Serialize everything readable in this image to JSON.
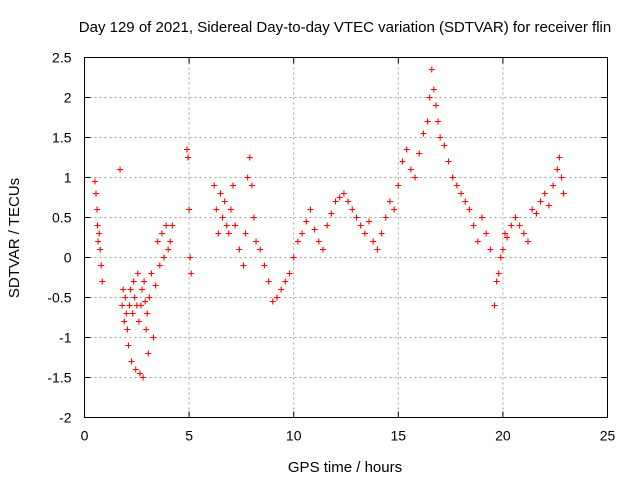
{
  "chart_data": {
    "type": "scatter",
    "title": "Day 129 of 2021, Sidereal Day-to-day VTEC variation (SDTVAR) for receiver flin",
    "xlabel": "GPS time / hours",
    "ylabel": "SDTVAR / TECUs",
    "xlim": [
      0,
      25
    ],
    "ylim": [
      -2,
      2.5
    ],
    "xticks": [
      0,
      5,
      10,
      15,
      20,
      25
    ],
    "yticks": [
      -2,
      -1.5,
      -1,
      -0.5,
      0,
      0.5,
      1,
      1.5,
      2,
      2.5
    ],
    "grid": true,
    "marker": "+",
    "color": "#ff0000",
    "series": [
      {
        "name": "SDTVAR",
        "x": [
          0.5,
          0.55,
          0.6,
          0.62,
          0.65,
          0.7,
          0.75,
          0.8,
          0.85,
          1.7,
          1.8,
          1.85,
          1.9,
          1.95,
          2.0,
          2.05,
          2.1,
          2.15,
          2.2,
          2.25,
          2.3,
          2.35,
          2.4,
          2.45,
          2.5,
          2.55,
          2.6,
          2.65,
          2.7,
          2.75,
          2.8,
          2.85,
          2.9,
          2.95,
          3.0,
          3.05,
          3.1,
          3.2,
          3.3,
          3.4,
          3.5,
          3.6,
          3.7,
          3.8,
          3.9,
          4.0,
          4.1,
          4.2,
          4.9,
          4.95,
          5.0,
          5.05,
          5.1,
          6.2,
          6.3,
          6.4,
          6.5,
          6.6,
          6.7,
          6.8,
          6.9,
          7.0,
          7.1,
          7.2,
          7.4,
          7.6,
          7.7,
          7.8,
          7.9,
          8.0,
          8.1,
          8.2,
          8.4,
          8.6,
          8.8,
          9.0,
          9.2,
          9.4,
          9.6,
          9.8,
          10.0,
          10.2,
          10.4,
          10.6,
          10.8,
          11.0,
          11.2,
          11.4,
          11.6,
          11.8,
          12.0,
          12.2,
          12.4,
          12.6,
          12.8,
          13.0,
          13.2,
          13.4,
          13.6,
          13.8,
          14.0,
          14.2,
          14.4,
          14.6,
          14.8,
          15.0,
          15.2,
          15.4,
          15.6,
          15.8,
          16.0,
          16.2,
          16.4,
          16.5,
          16.6,
          16.7,
          16.8,
          16.9,
          17.0,
          17.2,
          17.4,
          17.6,
          17.8,
          18.0,
          18.2,
          18.4,
          18.6,
          18.8,
          19.0,
          19.2,
          19.4,
          19.6,
          19.7,
          19.8,
          19.9,
          20.0,
          20.1,
          20.2,
          20.4,
          20.6,
          20.8,
          21.0,
          21.2,
          21.4,
          21.6,
          21.8,
          22.0,
          22.2,
          22.4,
          22.6,
          22.7,
          22.8,
          22.9
        ],
        "y": [
          0.95,
          0.8,
          0.6,
          0.4,
          0.2,
          0.3,
          0.1,
          -0.1,
          -0.3,
          1.1,
          -0.6,
          -0.4,
          -0.8,
          -0.5,
          -0.7,
          -0.9,
          -1.1,
          -0.6,
          -0.4,
          -1.3,
          -0.7,
          -0.3,
          -0.5,
          -1.4,
          -0.6,
          -0.2,
          -0.8,
          -1.45,
          -0.6,
          -0.4,
          -1.5,
          -0.3,
          -0.55,
          -0.9,
          -0.7,
          -1.2,
          -0.5,
          -0.2,
          -1.0,
          -0.35,
          0.2,
          -0.1,
          0.3,
          0.0,
          0.4,
          0.1,
          0.2,
          0.4,
          1.35,
          1.25,
          0.6,
          0.0,
          -0.2,
          0.9,
          0.6,
          0.3,
          0.8,
          0.5,
          0.7,
          0.4,
          0.3,
          0.6,
          0.9,
          0.4,
          0.1,
          -0.1,
          0.3,
          1.0,
          1.25,
          0.9,
          0.5,
          0.2,
          0.1,
          -0.1,
          -0.3,
          -0.55,
          -0.5,
          -0.4,
          -0.3,
          -0.2,
          0.0,
          0.2,
          0.3,
          0.45,
          0.6,
          0.35,
          0.2,
          0.1,
          0.4,
          0.55,
          0.7,
          0.75,
          0.8,
          0.7,
          0.6,
          0.5,
          0.4,
          0.3,
          0.45,
          0.2,
          0.1,
          0.3,
          0.5,
          0.7,
          0.6,
          0.9,
          1.2,
          1.35,
          1.1,
          1.0,
          1.3,
          1.55,
          1.7,
          2.0,
          2.35,
          2.1,
          1.9,
          1.7,
          1.5,
          1.4,
          1.2,
          1.0,
          0.9,
          0.8,
          0.7,
          0.6,
          0.4,
          0.2,
          0.5,
          0.3,
          0.1,
          -0.6,
          -0.3,
          -0.2,
          0.0,
          0.1,
          0.3,
          0.25,
          0.4,
          0.5,
          0.4,
          0.3,
          0.2,
          0.6,
          0.55,
          0.7,
          0.8,
          0.65,
          0.9,
          1.1,
          1.25,
          1.0,
          0.8
        ]
      }
    ]
  }
}
